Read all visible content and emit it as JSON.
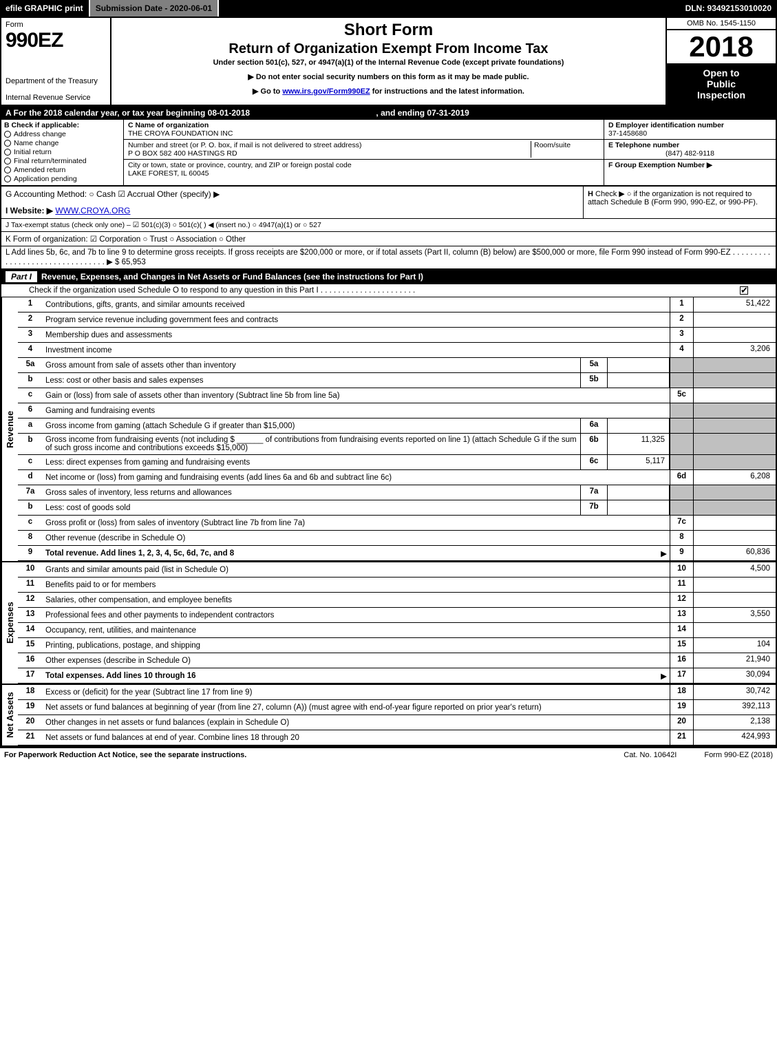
{
  "topbar": {
    "efile": "efile GRAPHIC print",
    "submission": "Submission Date - 2020-06-01",
    "dln": "DLN: 93492153010020"
  },
  "header": {
    "form_label": "Form",
    "form_no": "990EZ",
    "dept": "Department of the Treasury",
    "irs": "Internal Revenue Service",
    "title1": "Short Form",
    "title2": "Return of Organization Exempt From Income Tax",
    "subtitle": "Under section 501(c), 527, or 4947(a)(1) of the Internal Revenue Code (except private foundations)",
    "note1": "▶ Do not enter social security numbers on this form as it may be made public.",
    "note2_pre": "▶ Go to ",
    "note2_link": "www.irs.gov/Form990EZ",
    "note2_post": " for instructions and the latest information.",
    "omb": "OMB No. 1545-1150",
    "year": "2018",
    "open1": "Open to",
    "open2": "Public",
    "open3": "Inspection"
  },
  "calyear": {
    "a": "A  For the 2018 calendar year, or tax year beginning 08-01-2018",
    "end": ", and ending 07-31-2019"
  },
  "secB": {
    "title": "B  Check if applicable:",
    "opts": [
      "Address change",
      "Name change",
      "Initial return",
      "Final return/terminated",
      "Amended return",
      "Application pending"
    ],
    "c_lbl": "C Name of organization",
    "c_val": "THE CROYA FOUNDATION INC",
    "addr_lbl": "Number and street (or P. O. box, if mail is not delivered to street address)",
    "addr_val": "P O BOX 582 400 HASTINGS RD",
    "room_lbl": "Room/suite",
    "city_lbl": "City or town, state or province, country, and ZIP or foreign postal code",
    "city_val": "LAKE FOREST, IL  60045",
    "d_lbl": "D Employer identification number",
    "d_val": "37-1458680",
    "e_lbl": "E Telephone number",
    "e_val": "(847) 482-9118",
    "f_lbl": "F Group Exemption Number  ▶"
  },
  "lines": {
    "g": "G Accounting Method:   ○ Cash   ☑ Accrual   Other (specify) ▶",
    "h_title": "H",
    "h_text": "Check ▶  ○  if the organization is not required to attach Schedule B (Form 990, 990-EZ, or 990-PF).",
    "i_pre": "I Website: ▶",
    "i_link": "WWW.CROYA.ORG",
    "j": "J Tax-exempt status (check only one) – ☑ 501(c)(3)  ○  501(c)(  ) ◀ (insert no.)  ○  4947(a)(1) or  ○  527",
    "k": "K Form of organization:   ☑ Corporation   ○ Trust   ○ Association   ○ Other",
    "l": "L Add lines 5b, 6c, and 7b to line 9 to determine gross receipts. If gross receipts are $200,000 or more, or if total assets (Part II, column (B) below) are $500,000 or more, file Form 990 instead of Form 990-EZ . . . . . . . . . . . . . . . . . . . . . . . . . . . . . . . . ▶ $ 65,953"
  },
  "part1": {
    "label": "Part I",
    "title": "Revenue, Expenses, and Changes in Net Assets or Fund Balances (see the instructions for Part I)",
    "check_line": "Check if the organization used Schedule O to respond to any question in this Part I . . . . . . . . . . . . . . . . . . . . . ."
  },
  "sections": {
    "revenue": "Revenue",
    "expenses": "Expenses",
    "netassets": "Net Assets"
  },
  "rows": [
    {
      "n": "1",
      "d": "Contributions, gifts, grants, and similar amounts received",
      "cn": "1",
      "cv": "51,422"
    },
    {
      "n": "2",
      "d": "Program service revenue including government fees and contracts",
      "cn": "2",
      "cv": ""
    },
    {
      "n": "3",
      "d": "Membership dues and assessments",
      "cn": "3",
      "cv": ""
    },
    {
      "n": "4",
      "d": "Investment income",
      "cn": "4",
      "cv": "3,206"
    },
    {
      "n": "5a",
      "d": "Gross amount from sale of assets other than inventory",
      "sub": "5a",
      "subval": "",
      "gray": true
    },
    {
      "n": "b",
      "d": "Less: cost or other basis and sales expenses",
      "sub": "5b",
      "subval": "",
      "gray": true
    },
    {
      "n": "c",
      "d": "Gain or (loss) from sale of assets other than inventory (Subtract line 5b from line 5a)",
      "cn": "5c",
      "cv": ""
    },
    {
      "n": "6",
      "d": "Gaming and fundraising events",
      "gray": true,
      "nocol": true
    },
    {
      "n": "a",
      "d": "Gross income from gaming (attach Schedule G if greater than $15,000)",
      "sub": "6a",
      "subval": "",
      "gray": true
    },
    {
      "n": "b",
      "d": "Gross income from fundraising events (not including $ ______ of contributions from fundraising events reported on line 1) (attach Schedule G if the sum of such gross income and contributions exceeds $15,000)",
      "sub": "6b",
      "subval": "11,325",
      "gray": true
    },
    {
      "n": "c",
      "d": "Less: direct expenses from gaming and fundraising events",
      "sub": "6c",
      "subval": "5,117",
      "gray": true
    },
    {
      "n": "d",
      "d": "Net income or (loss) from gaming and fundraising events (add lines 6a and 6b and subtract line 6c)",
      "cn": "6d",
      "cv": "6,208"
    },
    {
      "n": "7a",
      "d": "Gross sales of inventory, less returns and allowances",
      "sub": "7a",
      "subval": "",
      "gray": true
    },
    {
      "n": "b",
      "d": "Less: cost of goods sold",
      "sub": "7b",
      "subval": "",
      "gray": true
    },
    {
      "n": "c",
      "d": "Gross profit or (loss) from sales of inventory (Subtract line 7b from line 7a)",
      "cn": "7c",
      "cv": ""
    },
    {
      "n": "8",
      "d": "Other revenue (describe in Schedule O)",
      "cn": "8",
      "cv": ""
    },
    {
      "n": "9",
      "d": "Total revenue. Add lines 1, 2, 3, 4, 5c, 6d, 7c, and 8",
      "cn": "9",
      "cv": "60,836",
      "bold": true,
      "arrow": true
    }
  ],
  "exp_rows": [
    {
      "n": "10",
      "d": "Grants and similar amounts paid (list in Schedule O)",
      "cn": "10",
      "cv": "4,500"
    },
    {
      "n": "11",
      "d": "Benefits paid to or for members",
      "cn": "11",
      "cv": ""
    },
    {
      "n": "12",
      "d": "Salaries, other compensation, and employee benefits",
      "cn": "12",
      "cv": ""
    },
    {
      "n": "13",
      "d": "Professional fees and other payments to independent contractors",
      "cn": "13",
      "cv": "3,550"
    },
    {
      "n": "14",
      "d": "Occupancy, rent, utilities, and maintenance",
      "cn": "14",
      "cv": ""
    },
    {
      "n": "15",
      "d": "Printing, publications, postage, and shipping",
      "cn": "15",
      "cv": "104"
    },
    {
      "n": "16",
      "d": "Other expenses (describe in Schedule O)",
      "cn": "16",
      "cv": "21,940"
    },
    {
      "n": "17",
      "d": "Total expenses. Add lines 10 through 16",
      "cn": "17",
      "cv": "30,094",
      "bold": true,
      "arrow": true
    }
  ],
  "na_rows": [
    {
      "n": "18",
      "d": "Excess or (deficit) for the year (Subtract line 17 from line 9)",
      "cn": "18",
      "cv": "30,742"
    },
    {
      "n": "19",
      "d": "Net assets or fund balances at beginning of year (from line 27, column (A)) (must agree with end-of-year figure reported on prior year's return)",
      "cn": "19",
      "cv": "392,113"
    },
    {
      "n": "20",
      "d": "Other changes in net assets or fund balances (explain in Schedule O)",
      "cn": "20",
      "cv": "2,138"
    },
    {
      "n": "21",
      "d": "Net assets or fund balances at end of year. Combine lines 18 through 20",
      "cn": "21",
      "cv": "424,993"
    }
  ],
  "footer": {
    "left": "For Paperwork Reduction Act Notice, see the separate instructions.",
    "cat": "Cat. No. 10642I",
    "form": "Form 990-EZ (2018)"
  }
}
